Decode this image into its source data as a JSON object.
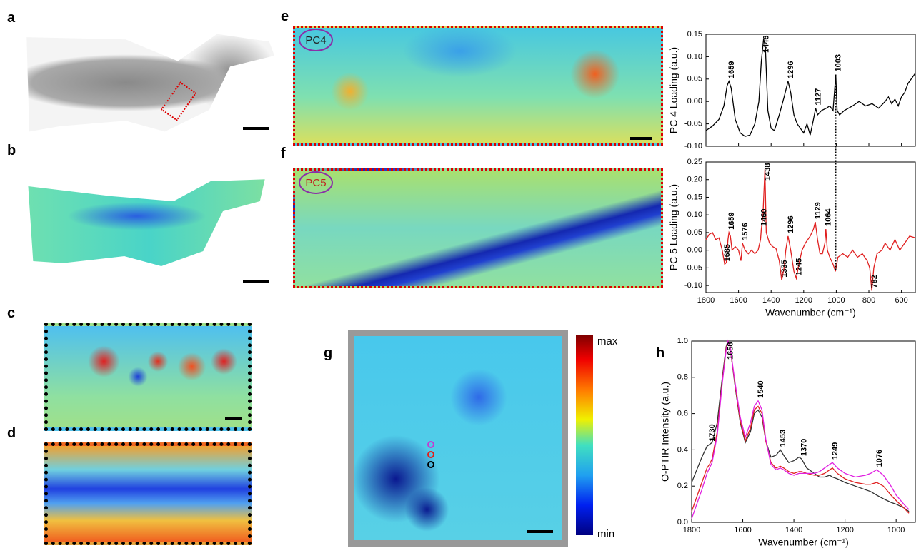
{
  "panel_labels": [
    "a",
    "b",
    "c",
    "d",
    "e",
    "f",
    "g",
    "h"
  ],
  "image_labels": [
    "PC4",
    "PC5",
    "max",
    "min"
  ],
  "chart_data": [
    {
      "type": "line",
      "ylabel": "PC 4 Loading (a.u.)",
      "xlim": [
        1800,
        515
      ],
      "xticks": [
        1800,
        1600,
        1400,
        1200,
        1000,
        800,
        600
      ],
      "ylim": [
        -0.1,
        0.15
      ],
      "yticks": [
        {
          "value": -0.1,
          "label": "-0.10"
        },
        {
          "value": -0.05,
          "label": "-0.05"
        },
        {
          "value": 0,
          "label": "0.00"
        },
        {
          "value": 0.05,
          "label": "0.05"
        },
        {
          "value": 0.1,
          "label": "0.10"
        },
        {
          "value": 0.15,
          "label": "0.15"
        }
      ],
      "series": [
        {
          "color": "#000000",
          "x": [
            1800,
            1760,
            1720,
            1690,
            1670,
            1659,
            1645,
            1620,
            1590,
            1560,
            1530,
            1500,
            1475,
            1460,
            1446,
            1435,
            1420,
            1400,
            1380,
            1350,
            1320,
            1296,
            1280,
            1260,
            1240,
            1220,
            1200,
            1180,
            1160,
            1140,
            1127,
            1115,
            1090,
            1060,
            1040,
            1020,
            1003,
            995,
            980,
            950,
            900,
            860,
            820,
            780,
            740,
            700,
            680,
            660,
            640,
            620,
            600,
            580,
            560,
            540,
            515
          ],
          "values": [
            -0.065,
            -0.055,
            -0.04,
            -0.01,
            0.035,
            0.045,
            0.03,
            -0.04,
            -0.07,
            -0.078,
            -0.075,
            -0.05,
            0.0,
            0.09,
            0.14,
            0.12,
            -0.02,
            -0.06,
            -0.065,
            -0.03,
            0.01,
            0.045,
            0.02,
            -0.03,
            -0.05,
            -0.06,
            -0.07,
            -0.05,
            -0.075,
            -0.04,
            -0.015,
            -0.03,
            -0.02,
            -0.015,
            -0.01,
            -0.02,
            0.06,
            -0.02,
            -0.03,
            -0.02,
            -0.01,
            0.0,
            -0.01,
            -0.005,
            -0.015,
            0.0,
            0.01,
            -0.005,
            0.005,
            -0.01,
            0.01,
            0.02,
            0.04,
            0.05,
            0.063
          ]
        }
      ],
      "peaks": [
        1659,
        1446,
        1296,
        1127,
        1003
      ]
    },
    {
      "type": "line",
      "ylabel": "PC 5 Loading (a.u.)",
      "xlabel": "Wavenumber (cm⁻¹)",
      "xlim": [
        1800,
        515
      ],
      "xticks": [
        1800,
        1600,
        1400,
        1200,
        1000,
        800,
        600
      ],
      "ylim": [
        -0.12,
        0.25
      ],
      "yticks": [
        {
          "value": -0.1,
          "label": "-0.10"
        },
        {
          "value": -0.05,
          "label": "-0.05"
        },
        {
          "value": 0,
          "label": "0.00"
        },
        {
          "value": 0.05,
          "label": "0.05"
        },
        {
          "value": 0.1,
          "label": "0.10"
        },
        {
          "value": 0.15,
          "label": "0.15"
        },
        {
          "value": 0.2,
          "label": "0.20"
        },
        {
          "value": 0.25,
          "label": "0.25"
        }
      ],
      "series": [
        {
          "color": "#e02020",
          "x": [
            1800,
            1780,
            1760,
            1740,
            1720,
            1700,
            1685,
            1675,
            1665,
            1659,
            1650,
            1640,
            1620,
            1600,
            1585,
            1576,
            1560,
            1540,
            1520,
            1500,
            1480,
            1465,
            1460,
            1450,
            1438,
            1430,
            1410,
            1390,
            1370,
            1350,
            1335,
            1320,
            1310,
            1296,
            1280,
            1260,
            1245,
            1230,
            1210,
            1190,
            1160,
            1140,
            1129,
            1115,
            1100,
            1085,
            1070,
            1064,
            1055,
            1040,
            1020,
            1005,
            990,
            960,
            930,
            900,
            870,
            840,
            810,
            795,
            782,
            770,
            750,
            720,
            700,
            670,
            640,
            610,
            580,
            550,
            515
          ],
          "values": [
            0.03,
            0.045,
            0.05,
            0.03,
            0.035,
            0.0,
            -0.04,
            -0.035,
            0.03,
            0.05,
            0.04,
            0.0,
            0.01,
            0.0,
            -0.03,
            0.02,
            0.0,
            -0.01,
            0.0,
            -0.01,
            0.0,
            0.03,
            0.06,
            0.1,
            0.23,
            0.05,
            0.02,
            0.01,
            0.005,
            -0.03,
            -0.085,
            -0.05,
            0.0,
            0.04,
            0.0,
            -0.06,
            -0.08,
            -0.04,
            0.0,
            0.02,
            0.04,
            0.06,
            0.08,
            0.03,
            -0.01,
            -0.01,
            0.02,
            0.06,
            0.0,
            -0.02,
            -0.04,
            -0.06,
            -0.02,
            -0.01,
            -0.02,
            0.0,
            -0.02,
            -0.01,
            -0.03,
            -0.05,
            -0.115,
            -0.05,
            -0.01,
            0.0,
            0.02,
            0.0,
            0.03,
            0.0,
            0.02,
            0.04,
            0.035
          ]
        }
      ],
      "peaks": [
        1685,
        1659,
        1576,
        1460,
        1438,
        1335,
        1296,
        1245,
        1129,
        1064,
        782
      ]
    },
    {
      "type": "line",
      "ylabel": "O-PTIR Intensity (a.u.)",
      "xlabel": "Wavenumber (cm⁻¹)",
      "xlim": [
        1800,
        925
      ],
      "xticks": [
        1800,
        1600,
        1400,
        1200,
        1000
      ],
      "ylim": [
        0,
        1.0
      ],
      "yticks": [
        {
          "value": 0,
          "label": "0.0"
        },
        0.2,
        0.4,
        0.6,
        0.8,
        {
          "value": 1.0,
          "label": "1.0"
        }
      ],
      "series": [
        {
          "color": "#333333",
          "x": [
            1800,
            1760,
            1740,
            1730,
            1720,
            1700,
            1680,
            1665,
            1658,
            1650,
            1630,
            1610,
            1590,
            1570,
            1555,
            1540,
            1525,
            1510,
            1490,
            1470,
            1453,
            1440,
            1420,
            1400,
            1380,
            1370,
            1350,
            1320,
            1300,
            1280,
            1260,
            1249,
            1230,
            1200,
            1160,
            1120,
            1100,
            1076,
            1050,
            1020,
            1000,
            970,
            950
          ],
          "values": [
            0.22,
            0.36,
            0.42,
            0.43,
            0.44,
            0.55,
            0.8,
            0.97,
            1.0,
            0.97,
            0.75,
            0.55,
            0.44,
            0.5,
            0.6,
            0.62,
            0.58,
            0.45,
            0.36,
            0.37,
            0.4,
            0.37,
            0.33,
            0.34,
            0.36,
            0.35,
            0.3,
            0.27,
            0.25,
            0.25,
            0.26,
            0.25,
            0.24,
            0.22,
            0.2,
            0.18,
            0.17,
            0.15,
            0.13,
            0.11,
            0.1,
            0.08,
            0.06
          ]
        },
        {
          "color": "#e02020",
          "x": [
            1800,
            1760,
            1740,
            1730,
            1720,
            1700,
            1680,
            1665,
            1658,
            1650,
            1630,
            1610,
            1590,
            1570,
            1555,
            1540,
            1525,
            1510,
            1490,
            1470,
            1453,
            1440,
            1420,
            1400,
            1380,
            1370,
            1350,
            1320,
            1300,
            1280,
            1260,
            1249,
            1230,
            1200,
            1160,
            1120,
            1100,
            1076,
            1050,
            1020,
            1000,
            970,
            950
          ],
          "values": [
            0.06,
            0.22,
            0.3,
            0.32,
            0.35,
            0.5,
            0.78,
            0.96,
            1.0,
            0.97,
            0.76,
            0.56,
            0.45,
            0.52,
            0.62,
            0.64,
            0.6,
            0.45,
            0.33,
            0.3,
            0.31,
            0.3,
            0.28,
            0.27,
            0.28,
            0.28,
            0.27,
            0.26,
            0.26,
            0.27,
            0.29,
            0.3,
            0.27,
            0.24,
            0.22,
            0.21,
            0.21,
            0.22,
            0.2,
            0.15,
            0.12,
            0.08,
            0.05
          ]
        },
        {
          "color": "#e020e0",
          "x": [
            1800,
            1760,
            1740,
            1730,
            1720,
            1700,
            1680,
            1665,
            1658,
            1650,
            1630,
            1610,
            1590,
            1570,
            1555,
            1540,
            1525,
            1510,
            1490,
            1470,
            1453,
            1440,
            1420,
            1400,
            1380,
            1370,
            1350,
            1320,
            1300,
            1280,
            1260,
            1249,
            1230,
            1200,
            1160,
            1120,
            1100,
            1076,
            1050,
            1020,
            1000,
            970,
            950
          ],
          "values": [
            0.02,
            0.18,
            0.27,
            0.3,
            0.33,
            0.48,
            0.77,
            0.95,
            1.0,
            0.97,
            0.77,
            0.58,
            0.47,
            0.55,
            0.64,
            0.67,
            0.62,
            0.46,
            0.32,
            0.29,
            0.3,
            0.29,
            0.27,
            0.26,
            0.27,
            0.27,
            0.27,
            0.27,
            0.28,
            0.3,
            0.32,
            0.33,
            0.3,
            0.27,
            0.25,
            0.26,
            0.27,
            0.29,
            0.26,
            0.2,
            0.15,
            0.1,
            0.07
          ]
        }
      ],
      "peaks": [
        1730,
        1658,
        1540,
        1453,
        1370,
        1249,
        1076
      ]
    }
  ]
}
